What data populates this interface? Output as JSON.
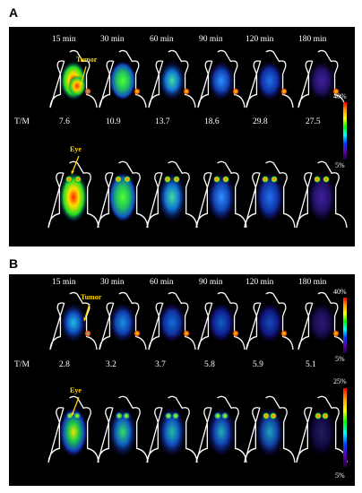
{
  "panels": [
    {
      "label": "A",
      "times": [
        "15 min",
        "30 min",
        "60 min",
        "90 min",
        "120 min",
        "180 min"
      ],
      "tm_label": "T/M",
      "tm_values": [
        "7.6",
        "10.9",
        "13.7",
        "18.6",
        "29.8",
        "27.5"
      ],
      "tumor_label": "Tumor",
      "eye_label": "Eye",
      "scale_top_max": "40%",
      "scale_top_min": "5%"
    },
    {
      "label": "B",
      "times": [
        "15 min",
        "30 min",
        "60 min",
        "90 min",
        "120 min",
        "180 min"
      ],
      "tm_label": "T/M",
      "tm_values": [
        "2.8",
        "3.2",
        "3.7",
        "5.8",
        "5.9",
        "5.1"
      ],
      "tumor_label": "Tumor",
      "eye_label": "Eye",
      "scale_top_max": "40%",
      "scale_top_min": "5%",
      "scale_bottom_max": "25%",
      "scale_bottom_min": "5%"
    }
  ],
  "colors": {
    "background": "#000000",
    "outline": "#ffffff",
    "annotation": "#ffd400"
  }
}
